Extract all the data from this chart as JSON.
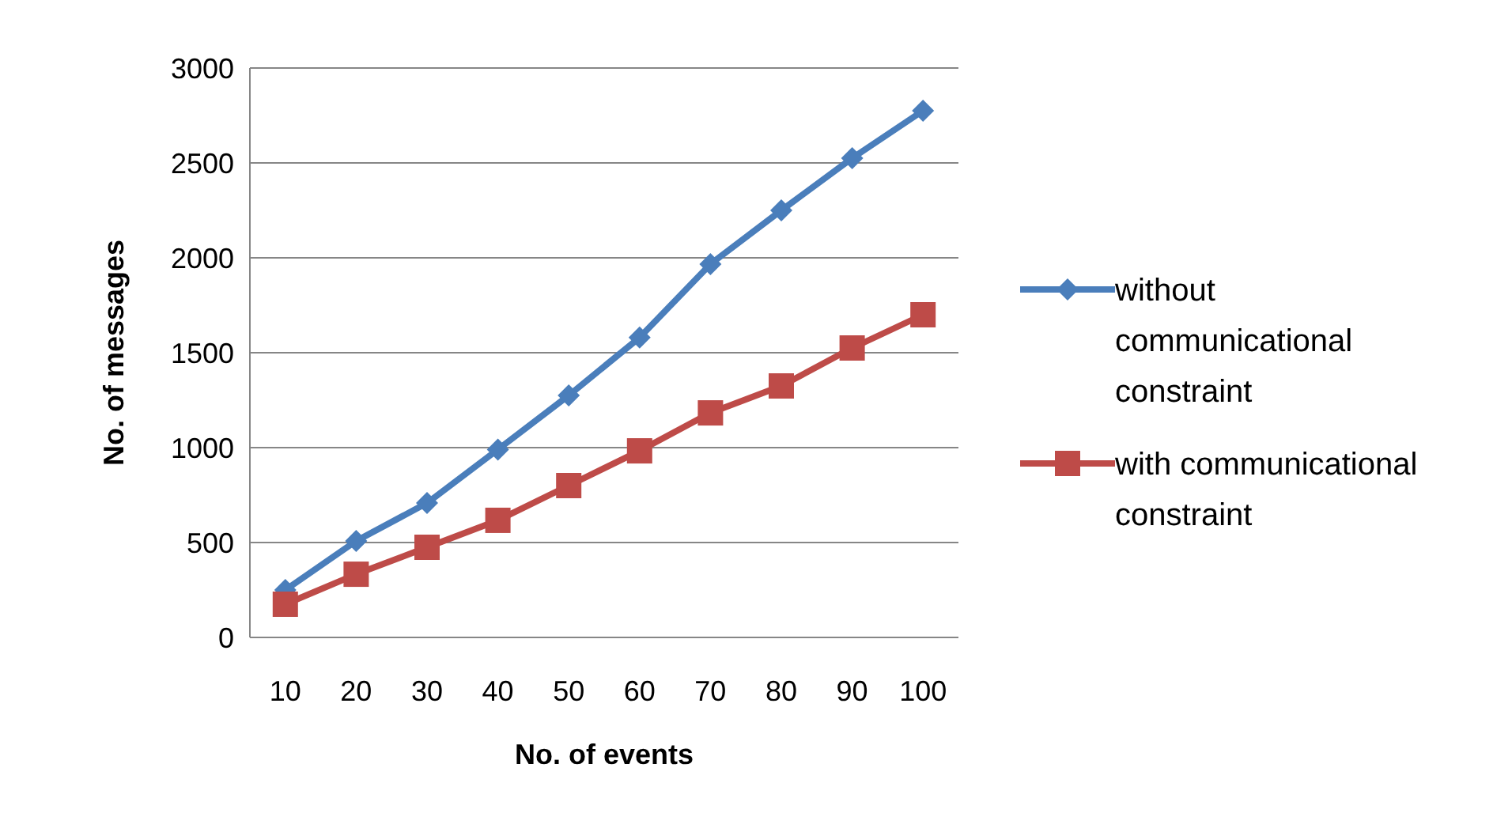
{
  "chart_data": {
    "type": "line",
    "xlabel": "No. of events",
    "ylabel": "No. of messages",
    "categories": [
      "10",
      "20",
      "30",
      "40",
      "50",
      "60",
      "70",
      "80",
      "90",
      "100"
    ],
    "series": [
      {
        "name": "without communicational constraint",
        "color": "#4a7ebb",
        "marker": "diamond",
        "values": [
          250,
          508,
          708,
          990,
          1275,
          1580,
          1967,
          2250,
          2525,
          2775
        ]
      },
      {
        "name": "with communicational constraint",
        "color": "#be4b48",
        "marker": "square",
        "values": [
          175,
          333,
          475,
          617,
          800,
          983,
          1183,
          1325,
          1525,
          1700
        ]
      }
    ],
    "ylim": [
      0,
      3000
    ],
    "yticks": [
      0,
      500,
      1000,
      1500,
      2000,
      2500,
      3000
    ],
    "grid": "y",
    "legend": "right"
  }
}
